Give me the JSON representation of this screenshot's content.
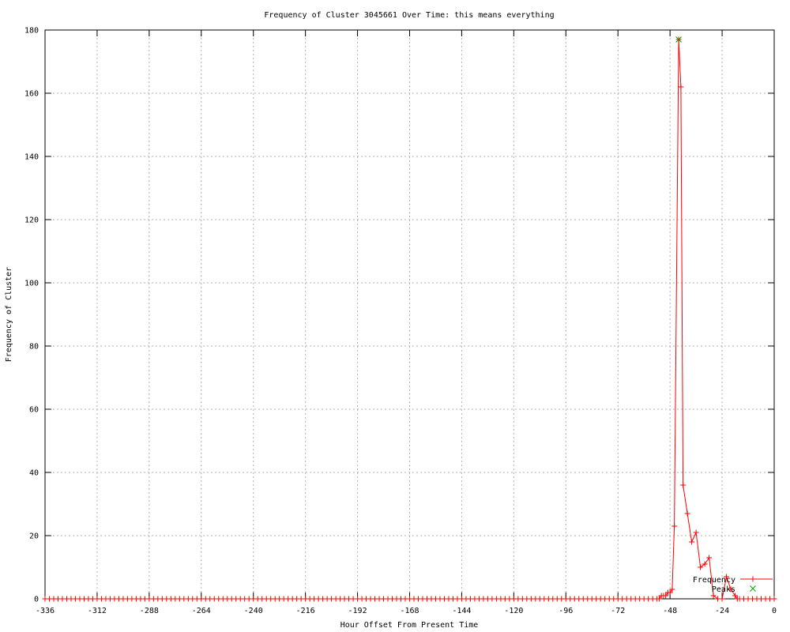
{
  "chart_data": {
    "type": "line",
    "title": "Frequency of Cluster 3045661 Over Time: this means everything",
    "xlabel": "Hour Offset From Present Time",
    "ylabel": "Frequency of Cluster",
    "xlim": [
      -336,
      0
    ],
    "ylim": [
      0,
      180
    ],
    "x_ticks": [
      -336,
      -312,
      -288,
      -264,
      -240,
      -216,
      -192,
      -168,
      -144,
      -120,
      -96,
      -72,
      -48,
      -24,
      0
    ],
    "y_ticks": [
      0,
      20,
      40,
      60,
      80,
      100,
      120,
      140,
      160,
      180
    ],
    "grid": true,
    "legend_position": "bottom-right",
    "grid_color": "#b0b0b0",
    "border_color": "#000000",
    "series": [
      {
        "name": "Frequency",
        "style": "linespoints",
        "marker": "plus",
        "color": "#ff0000",
        "baseline_zeros": {
          "x_from": -336,
          "x_to": -56,
          "step": 2,
          "value": 0
        },
        "points": [
          [
            -54,
            0
          ],
          [
            -53,
            0
          ],
          [
            -52,
            1
          ],
          [
            -51,
            1
          ],
          [
            -50,
            1
          ],
          [
            -49,
            2
          ],
          [
            -48,
            2
          ],
          [
            -47,
            3
          ],
          [
            -46,
            23
          ],
          [
            -44,
            177
          ],
          [
            -43,
            162
          ],
          [
            -42,
            36
          ],
          [
            -40,
            27
          ],
          [
            -38,
            18
          ],
          [
            -36,
            21
          ],
          [
            -34,
            10
          ],
          [
            -32,
            11
          ],
          [
            -30,
            13
          ],
          [
            -28,
            1
          ],
          [
            -26,
            0
          ],
          [
            -24,
            0
          ],
          [
            -22,
            7
          ],
          [
            -20,
            3
          ],
          [
            -18,
            1
          ],
          [
            -17,
            0
          ],
          [
            -16,
            0
          ],
          [
            -14,
            0
          ],
          [
            -12,
            0
          ],
          [
            -10,
            0
          ],
          [
            -8,
            0
          ],
          [
            -6,
            0
          ],
          [
            -4,
            0
          ],
          [
            -2,
            0
          ],
          [
            0,
            0
          ]
        ]
      },
      {
        "name": "Peaks",
        "style": "points",
        "marker": "cross",
        "color": "#00a000",
        "points": [
          [
            -44,
            177
          ]
        ]
      }
    ]
  }
}
